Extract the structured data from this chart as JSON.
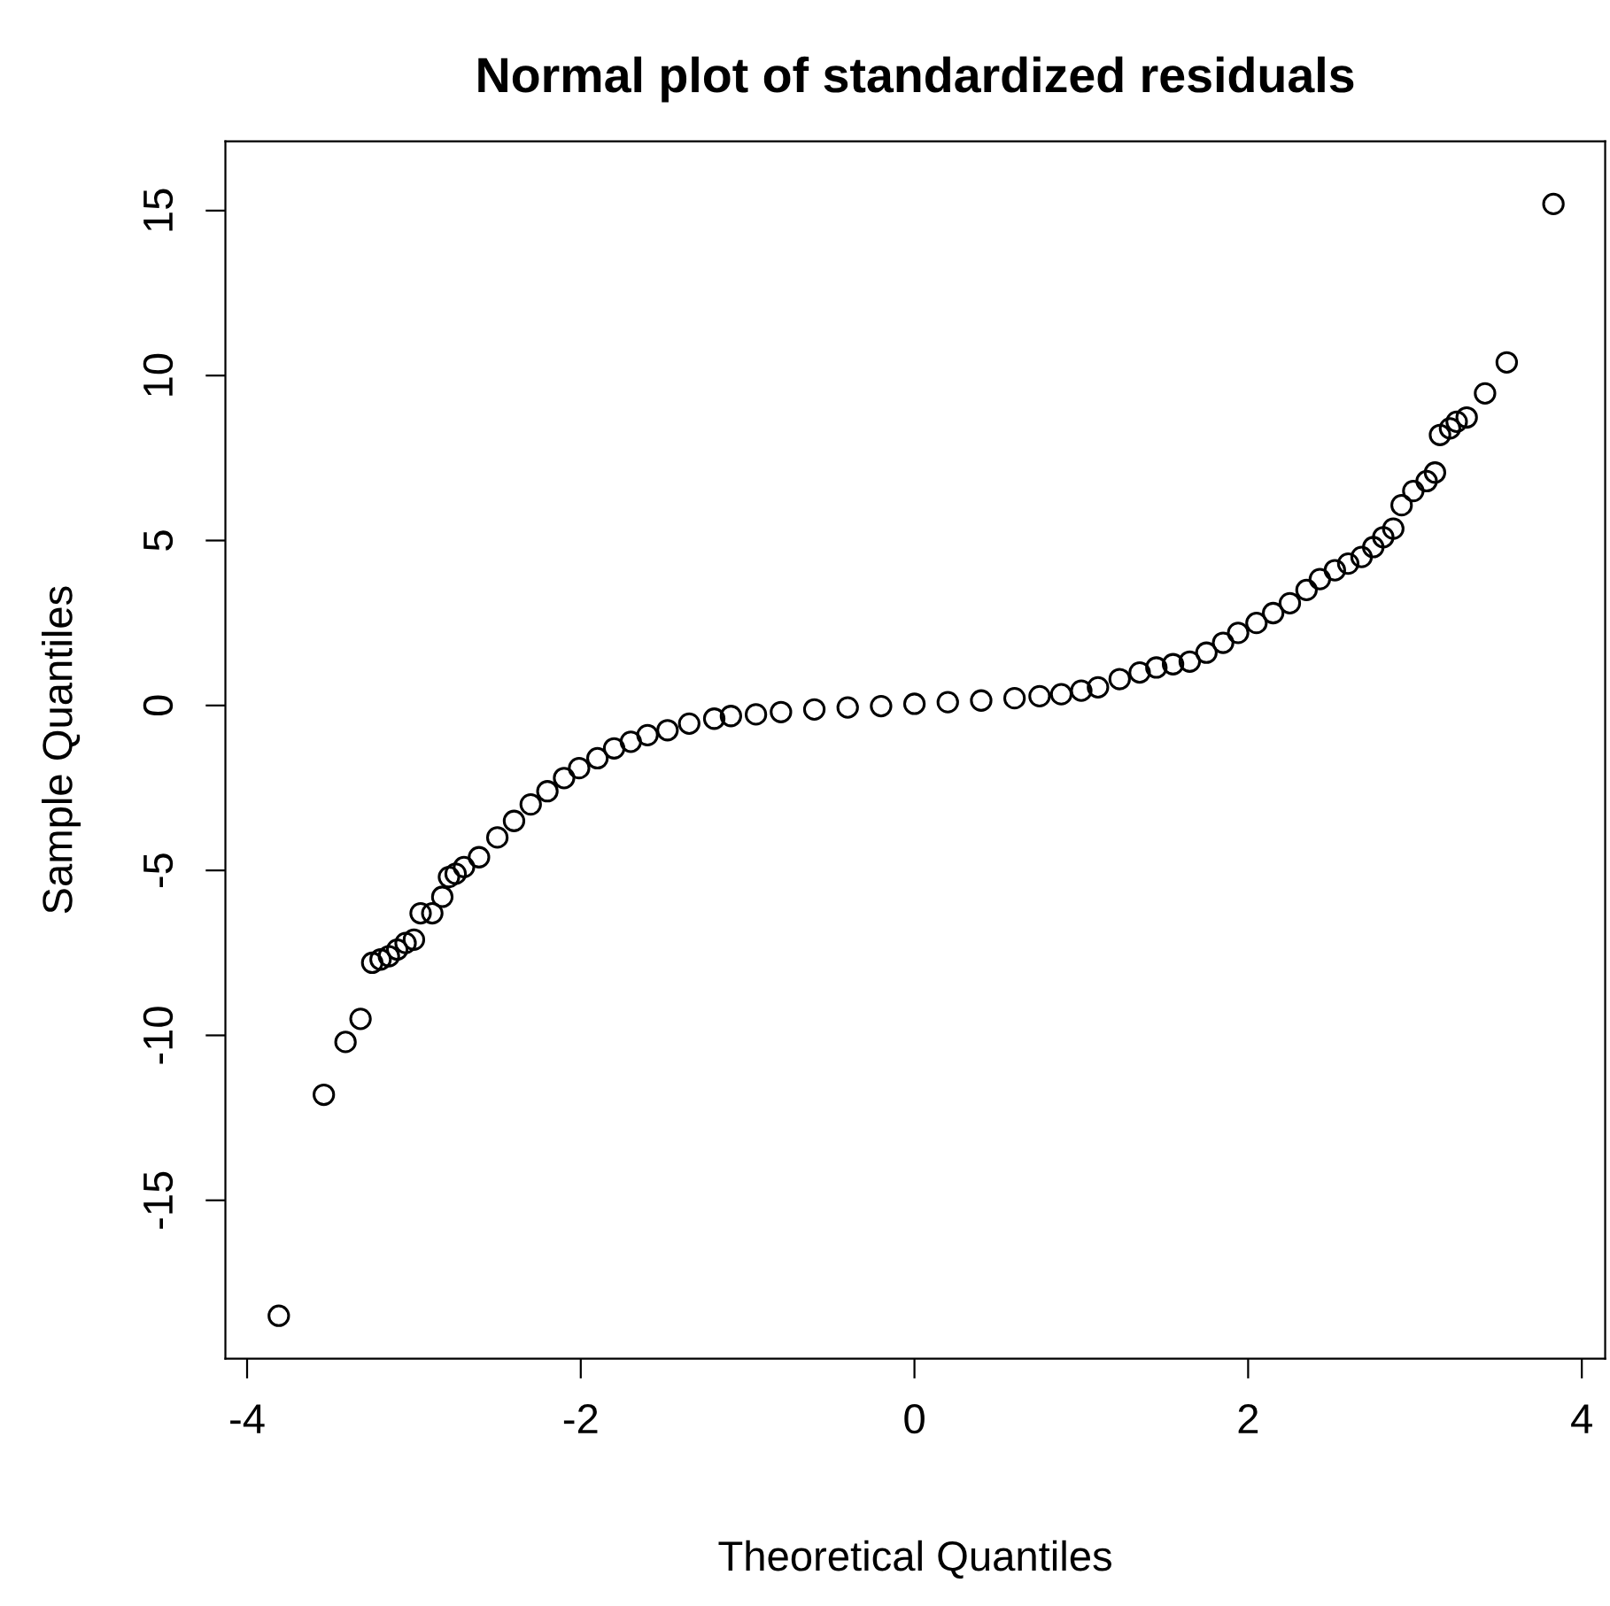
{
  "chart_data": {
    "type": "scatter",
    "title": "Normal plot of standardized residuals",
    "xlabel": "Theoretical Quantiles",
    "ylabel": "Sample Quantiles",
    "x": [
      -3.81,
      -3.54,
      -3.41,
      -3.32,
      -3.25,
      -3.2,
      -3.15,
      -3.1,
      -3.05,
      -3.0,
      -2.96,
      -2.89,
      -2.83,
      -2.79,
      -2.75,
      -2.7,
      -2.61,
      -2.5,
      -2.4,
      -2.3,
      -2.2,
      -2.1,
      -2.01,
      -1.9,
      -1.8,
      -1.7,
      -1.6,
      -1.48,
      -1.35,
      -1.2,
      -1.1,
      -0.95,
      -0.8,
      -0.6,
      -0.4,
      -0.2,
      0.0,
      0.2,
      0.4,
      0.6,
      0.75,
      0.88,
      1.0,
      1.1,
      1.23,
      1.35,
      1.45,
      1.55,
      1.65,
      1.75,
      1.85,
      1.94,
      2.05,
      2.15,
      2.25,
      2.35,
      2.43,
      2.52,
      2.6,
      2.68,
      2.75,
      2.81,
      2.87,
      2.92,
      2.99,
      3.07,
      3.12,
      3.15,
      3.21,
      3.25,
      3.31,
      3.42,
      3.55,
      3.83
    ],
    "values": [
      -18.5,
      -11.8,
      -10.2,
      -9.5,
      -7.8,
      -7.7,
      -7.6,
      -7.4,
      -7.2,
      -7.1,
      -6.3,
      -6.3,
      -5.8,
      -5.2,
      -5.1,
      -4.9,
      -4.6,
      -4.0,
      -3.5,
      -3.0,
      -2.6,
      -2.2,
      -1.9,
      -1.6,
      -1.3,
      -1.1,
      -0.9,
      -0.75,
      -0.55,
      -0.4,
      -0.32,
      -0.27,
      -0.2,
      -0.12,
      -0.06,
      -0.02,
      0.05,
      0.1,
      0.15,
      0.22,
      0.28,
      0.34,
      0.45,
      0.55,
      0.8,
      1.0,
      1.15,
      1.25,
      1.33,
      1.6,
      1.9,
      2.2,
      2.5,
      2.8,
      3.1,
      3.5,
      3.83,
      4.1,
      4.3,
      4.5,
      4.8,
      5.1,
      5.36,
      6.07,
      6.5,
      6.8,
      7.06,
      8.2,
      8.4,
      8.6,
      8.73,
      9.46,
      10.4,
      15.2
    ],
    "color": "#000000",
    "marker": "circle",
    "grid": false,
    "xlim": [
      -4.13,
      4.14
    ],
    "ylim": [
      -19.8,
      17.1
    ],
    "xticks": [
      -4,
      -2,
      0,
      2,
      4
    ],
    "yticks": [
      -15,
      -10,
      -5,
      0,
      5,
      10,
      15
    ]
  }
}
